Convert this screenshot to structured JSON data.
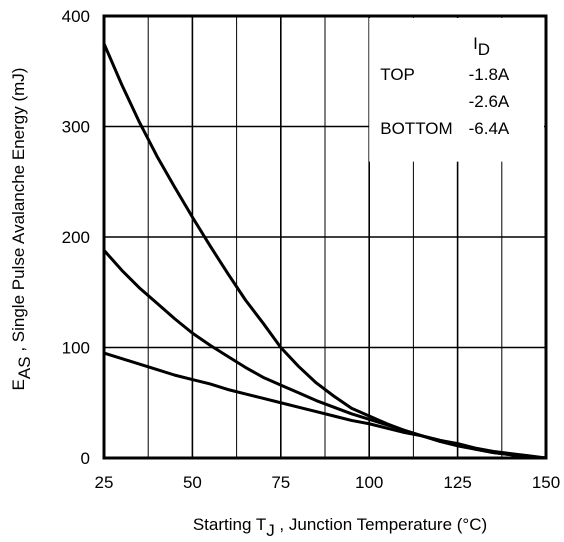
{
  "chart_data": {
    "type": "line",
    "title": "",
    "xlabel_main": "Starting T",
    "xlabel_sub": "J",
    "xlabel_rest": " , Junction Temperature (°C)",
    "ylabel_main": "E",
    "ylabel_sub": "AS",
    "ylabel_rest": " , Single Pulse Avalanche Energy (mJ)",
    "xlim": [
      25,
      150
    ],
    "ylim": [
      0,
      400
    ],
    "x_ticks": [
      "25",
      "50",
      "75",
      "100",
      "125",
      "150"
    ],
    "y_ticks": [
      "0",
      "100",
      "200",
      "300",
      "400"
    ],
    "x_minor_step": 12.5,
    "grid": true,
    "legend": {
      "placement": "top-right",
      "header_main": "I",
      "header_sub": "D",
      "rows": [
        {
          "position": "TOP",
          "current": "-1.8A"
        },
        {
          "position": "",
          "current": "-2.6A"
        },
        {
          "position": "BOTTOM",
          "current": "-6.4A"
        }
      ]
    },
    "series": [
      {
        "x": [
          25,
          30,
          35,
          40,
          45,
          50,
          55,
          60,
          65,
          70,
          75,
          80,
          85,
          90,
          95,
          100,
          105,
          110,
          115,
          120,
          125,
          130,
          135,
          140,
          145,
          150
        ],
        "y": [
          375,
          338,
          304,
          273,
          245,
          218,
          192,
          167,
          143,
          122,
          100,
          83,
          68,
          56,
          45,
          38,
          31,
          25,
          20,
          15,
          11,
          8,
          5,
          3,
          1,
          0
        ]
      },
      {
        "x": [
          25,
          30,
          35,
          40,
          45,
          50,
          55,
          60,
          65,
          70,
          75,
          80,
          85,
          90,
          95,
          100,
          105,
          110,
          115,
          120,
          125,
          130,
          135,
          140,
          145,
          150
        ],
        "y": [
          188,
          170,
          154,
          140,
          126,
          113,
          102,
          92,
          82,
          73,
          66,
          59,
          52,
          46,
          40,
          35,
          30,
          25,
          20,
          16,
          12,
          8,
          5,
          3,
          1,
          0
        ]
      },
      {
        "x": [
          25,
          30,
          35,
          40,
          45,
          50,
          55,
          60,
          65,
          70,
          75,
          80,
          85,
          90,
          95,
          100,
          105,
          110,
          115,
          120,
          125,
          130,
          135,
          140,
          145,
          150
        ],
        "y": [
          95,
          90,
          85,
          80,
          75,
          71,
          67,
          62,
          58,
          54,
          50,
          46,
          42,
          38,
          34,
          31,
          27,
          23,
          20,
          16,
          13,
          9,
          6,
          4,
          2,
          0
        ]
      }
    ]
  }
}
